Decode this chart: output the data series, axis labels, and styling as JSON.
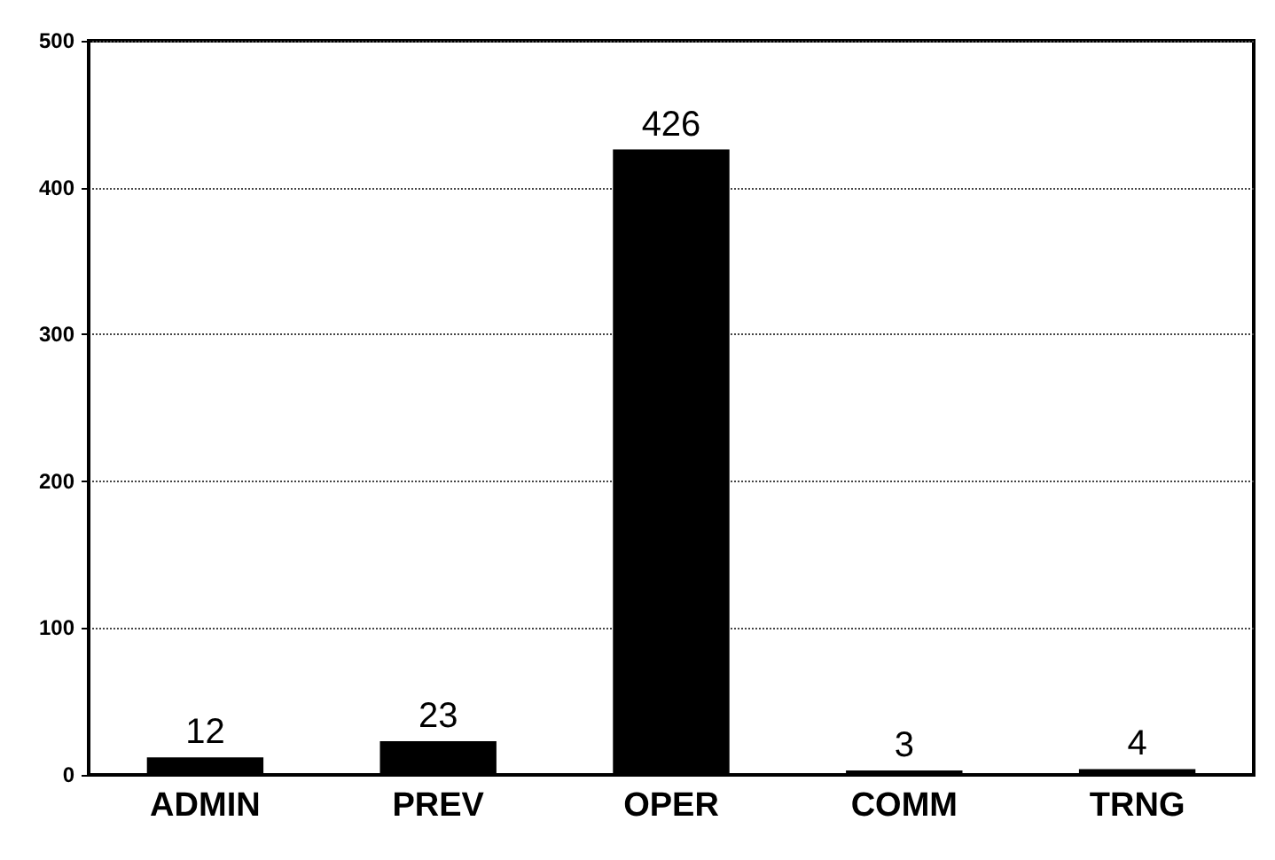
{
  "chart_data": {
    "type": "bar",
    "categories": [
      "ADMIN",
      "PREV",
      "OPER",
      "COMM",
      "TRNG"
    ],
    "values": [
      12,
      23,
      426,
      3,
      4
    ],
    "color": "#000000",
    "ylim": [
      0,
      500
    ],
    "yticks": [
      0,
      100,
      200,
      300,
      400,
      500
    ],
    "grid": "y",
    "data_labels": true
  }
}
